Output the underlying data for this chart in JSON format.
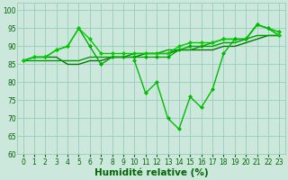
{
  "x": [
    0,
    1,
    2,
    3,
    4,
    5,
    6,
    7,
    8,
    9,
    10,
    11,
    12,
    13,
    14,
    15,
    16,
    17,
    18,
    19,
    20,
    21,
    22,
    23
  ],
  "series": [
    {
      "y": [
        86,
        87,
        87,
        89,
        90,
        95,
        90,
        85,
        87,
        87,
        87,
        87,
        87,
        87,
        89,
        90,
        90,
        91,
        92,
        92,
        92,
        96,
        95,
        93
      ],
      "color": "#00aa00",
      "marker": "D",
      "markersize": 2.5,
      "linewidth": 1.0
    },
    {
      "y": [
        86,
        87,
        87,
        89,
        90,
        95,
        92,
        88,
        88,
        88,
        88,
        88,
        88,
        88,
        90,
        91,
        91,
        91,
        92,
        92,
        92,
        96,
        95,
        93
      ],
      "color": "#00cc00",
      "marker": "D",
      "markersize": 2.5,
      "linewidth": 1.0
    },
    {
      "y": [
        86,
        87,
        87,
        87,
        85,
        85,
        86,
        86,
        87,
        87,
        87,
        88,
        88,
        88,
        89,
        89,
        89,
        89,
        90,
        90,
        91,
        92,
        93,
        93
      ],
      "color": "#007700",
      "marker": null,
      "markersize": 0,
      "linewidth": 1.0
    },
    {
      "y": [
        86,
        86,
        86,
        86,
        86,
        86,
        87,
        87,
        87,
        87,
        88,
        88,
        88,
        89,
        89,
        89,
        90,
        90,
        91,
        91,
        92,
        93,
        93,
        93
      ],
      "color": "#009900",
      "marker": null,
      "markersize": 0,
      "linewidth": 1.0
    },
    {
      "y": [
        null,
        null,
        null,
        null,
        null,
        null,
        null,
        null,
        null,
        null,
        86,
        77,
        80,
        70,
        67,
        76,
        73,
        78,
        88,
        92,
        92,
        96,
        95,
        94
      ],
      "color": "#00bb00",
      "marker": "D",
      "markersize": 2.5,
      "linewidth": 1.0
    }
  ],
  "xlabel": "Humidité relative (%)",
  "xlim": [
    -0.5,
    23.5
  ],
  "ylim": [
    60,
    102
  ],
  "yticks": [
    60,
    65,
    70,
    75,
    80,
    85,
    90,
    95,
    100
  ],
  "xticks": [
    0,
    1,
    2,
    3,
    4,
    5,
    6,
    7,
    8,
    9,
    10,
    11,
    12,
    13,
    14,
    15,
    16,
    17,
    18,
    19,
    20,
    21,
    22,
    23
  ],
  "grid_color": "#99ccbb",
  "bg_color": "#cce8dc",
  "xlabel_color": "#006600",
  "tick_color": "#006600",
  "xlabel_fontsize": 7.5,
  "tick_fontsize": 5.5
}
